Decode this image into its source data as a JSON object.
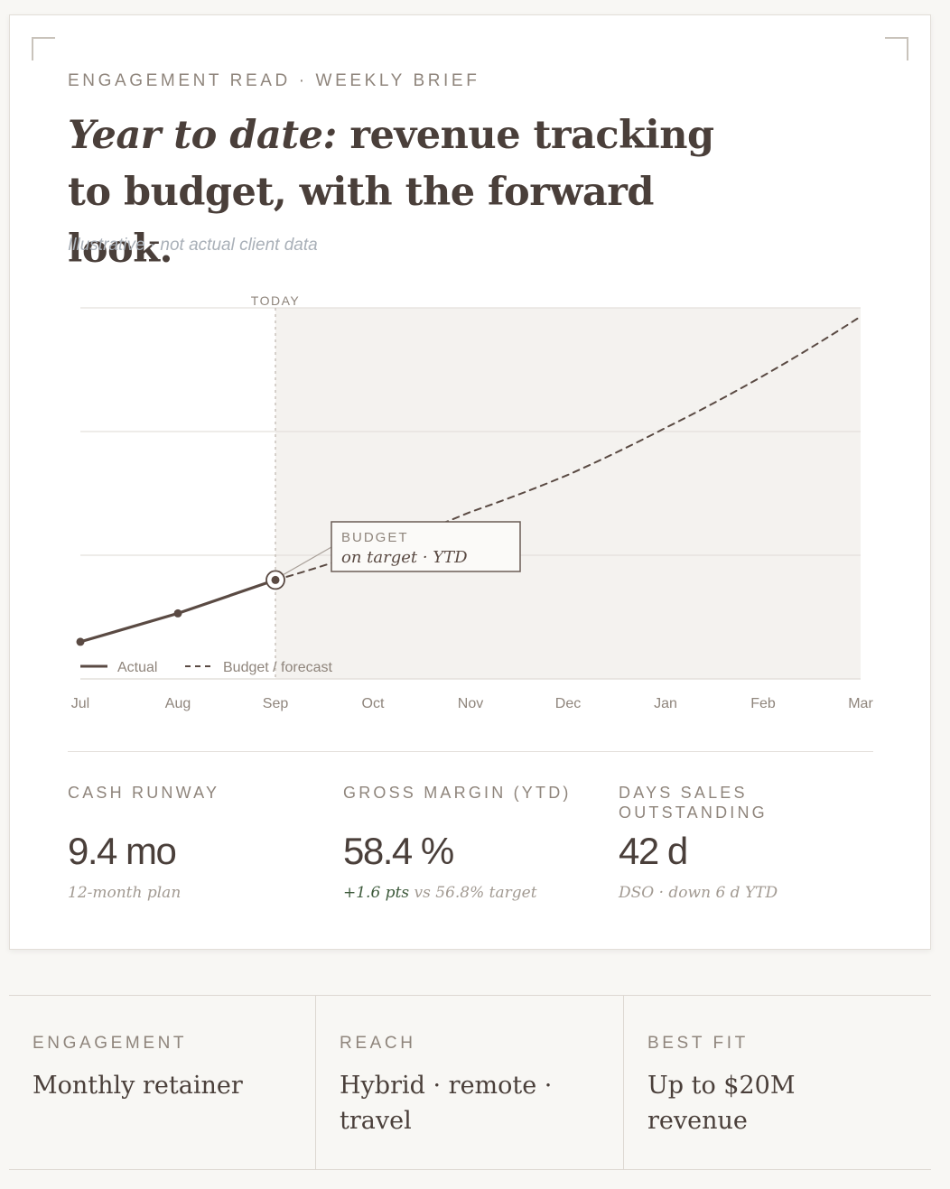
{
  "card": {
    "eyebrow": "ENGAGEMENT READ · WEEKLY BRIEF",
    "headline_italic": "Year to date:",
    "headline_rest": " revenue tracking to budget, with the forward look.",
    "note": "Illustrative · not actual client data"
  },
  "chart_data": {
    "type": "line",
    "categories": [
      "Jul",
      "Aug",
      "Sep",
      "Oct",
      "Nov",
      "Dec",
      "Jan",
      "Feb",
      "Mar"
    ],
    "today_label": "TODAY",
    "today_index": 2,
    "ylim": [
      0,
      3
    ],
    "grid": true,
    "series": [
      {
        "name": "Actual",
        "style": "solid",
        "values": [
          0.3,
          0.53,
          0.8,
          null,
          null,
          null,
          null,
          null,
          null
        ]
      },
      {
        "name": "Budget / forecast",
        "style": "dashed",
        "values": [
          null,
          null,
          0.8,
          1.05,
          1.35,
          1.65,
          2.03,
          2.45,
          2.93
        ]
      }
    ],
    "annotation": {
      "title": "BUDGET",
      "text": "on target · YTD"
    },
    "legend_position": "bottom-left"
  },
  "metrics": [
    {
      "label": "CASH RUNWAY",
      "value": "9.4 mo",
      "sub": "12-month plan",
      "sub_positive": ""
    },
    {
      "label": "GROSS MARGIN (YTD)",
      "value": "58.4 %",
      "sub": " vs 56.8% target",
      "sub_positive": "+1.6 pts"
    },
    {
      "label": "DAYS SALES OUTSTANDING",
      "value": "42 d",
      "sub": "DSO · down 6 d YTD",
      "sub_positive": ""
    }
  ],
  "details": [
    {
      "label": "ENGAGEMENT",
      "text": "Monthly retainer"
    },
    {
      "label": "REACH",
      "text": "Hybrid · remote · travel"
    },
    {
      "label": "BEST FIT",
      "text": "Up to $20M revenue"
    }
  ],
  "colors": {
    "line": "#5a4a43",
    "forecast_band": "#f4f2ef",
    "grid": "#e3e0dc",
    "muted": "#8f857c",
    "positive": "#3d5a3b"
  }
}
